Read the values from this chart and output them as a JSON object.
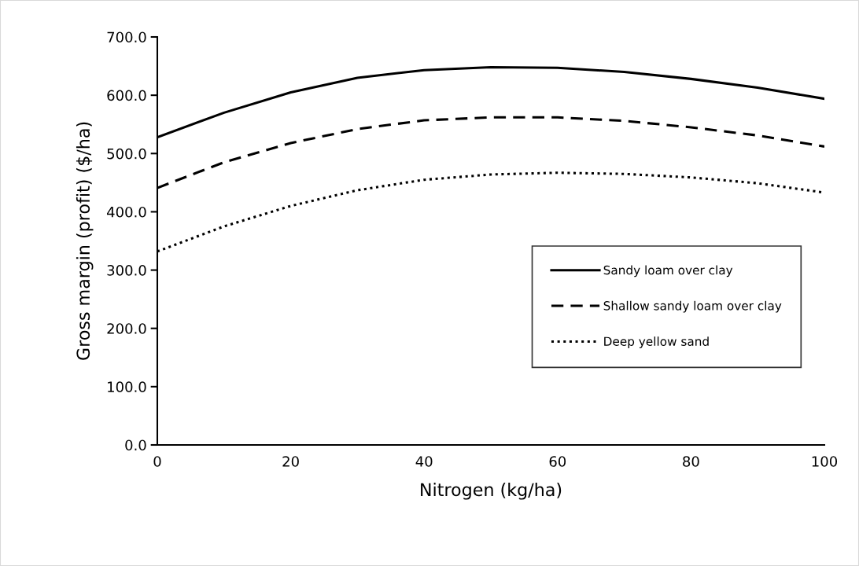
{
  "chart_data": {
    "type": "line",
    "xlabel": "Nitrogen (kg/ha)",
    "ylabel": "Gross margin (profit) ($/ha)",
    "x": [
      0,
      10,
      20,
      30,
      40,
      50,
      60,
      70,
      80,
      90,
      100
    ],
    "series": [
      {
        "name": "Sandy loam over clay",
        "color": "#000000",
        "line_style": "solid",
        "values": [
          528,
          570,
          605,
          630,
          643,
          648,
          647,
          640,
          628,
          613,
          594
        ]
      },
      {
        "name": "Shallow sandy loam over clay",
        "color": "#000000",
        "line_style": "dashed",
        "values": [
          441,
          485,
          518,
          542,
          557,
          562,
          562,
          556,
          545,
          531,
          512
        ]
      },
      {
        "name": "Deep yellow sand",
        "color": "#000000",
        "line_style": "dotted",
        "values": [
          332,
          375,
          410,
          437,
          455,
          464,
          467,
          465,
          459,
          449,
          433
        ]
      }
    ],
    "xlim": [
      0,
      100
    ],
    "xticks": [
      0,
      20,
      40,
      60,
      80,
      100
    ],
    "ylim": [
      0,
      700
    ],
    "yticks": [
      {
        "value": 0,
        "label": "0.0"
      },
      {
        "value": 100,
        "label": "100.0"
      },
      {
        "value": 200,
        "label": "200.0"
      },
      {
        "value": 300,
        "label": "300.0"
      },
      {
        "value": 400,
        "label": "400.0"
      },
      {
        "value": 500,
        "label": "500.0"
      },
      {
        "value": 600,
        "label": "600.0"
      },
      {
        "value": 700,
        "label": "700.0"
      }
    ],
    "grid": false,
    "legend": "bottom right",
    "marker": "none"
  }
}
